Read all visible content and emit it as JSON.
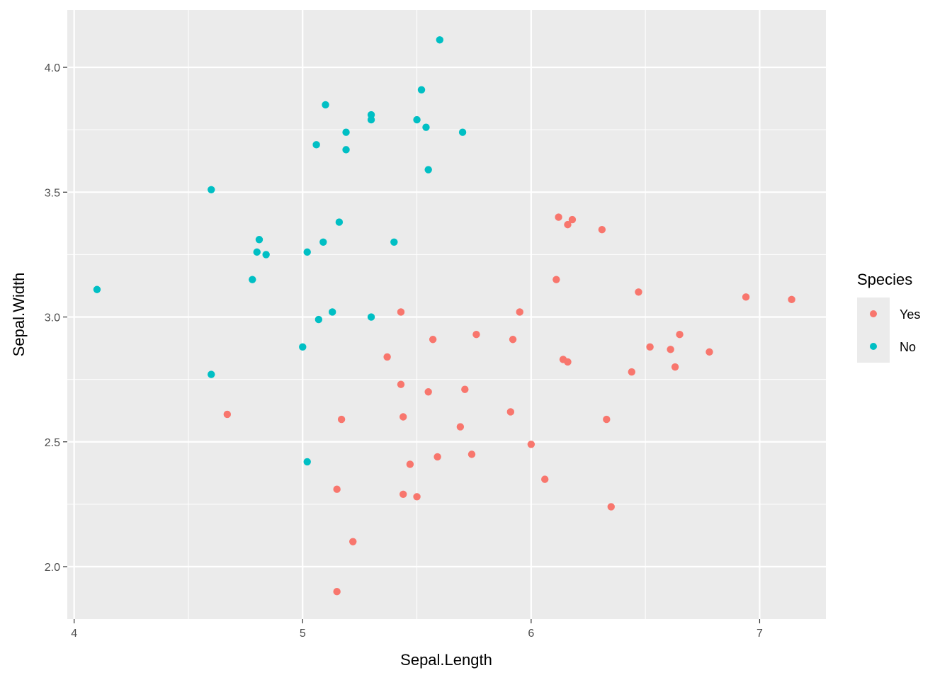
{
  "chart_data": {
    "type": "scatter",
    "xlabel": "Sepal.Length",
    "ylabel": "Sepal.Width",
    "xlim": [
      3.97,
      7.29
    ],
    "ylim": [
      1.79,
      4.23
    ],
    "x_ticks": [
      4,
      5,
      6,
      7
    ],
    "y_ticks": [
      2.0,
      2.5,
      3.0,
      3.5,
      4.0
    ],
    "x_tick_labels": [
      "4",
      "5",
      "6",
      "7"
    ],
    "y_tick_labels": [
      "2.0",
      "2.5",
      "3.0",
      "3.5",
      "4.0"
    ],
    "grid": true,
    "legend": {
      "title": "Species",
      "position": "right",
      "entries": [
        {
          "label": "Yes",
          "color": "#F8766D"
        },
        {
          "label": "No",
          "color": "#00BFC4"
        }
      ]
    },
    "series": [
      {
        "name": "Yes",
        "color": "#F8766D",
        "points": [
          [
            4.67,
            2.61
          ],
          [
            5.15,
            1.9
          ],
          [
            5.15,
            2.31
          ],
          [
            5.17,
            2.59
          ],
          [
            5.22,
            2.1
          ],
          [
            5.37,
            2.84
          ],
          [
            5.43,
            3.02
          ],
          [
            5.43,
            2.73
          ],
          [
            5.44,
            2.6
          ],
          [
            5.44,
            2.29
          ],
          [
            5.47,
            2.41
          ],
          [
            5.5,
            2.28
          ],
          [
            5.55,
            2.7
          ],
          [
            5.57,
            2.91
          ],
          [
            5.59,
            2.44
          ],
          [
            5.69,
            2.56
          ],
          [
            5.71,
            2.71
          ],
          [
            5.74,
            2.45
          ],
          [
            5.76,
            2.93
          ],
          [
            5.91,
            2.62
          ],
          [
            5.92,
            2.91
          ],
          [
            5.95,
            3.02
          ],
          [
            6.0,
            2.49
          ],
          [
            6.06,
            2.35
          ],
          [
            6.11,
            3.15
          ],
          [
            6.12,
            3.4
          ],
          [
            6.14,
            2.83
          ],
          [
            6.16,
            3.37
          ],
          [
            6.16,
            2.82
          ],
          [
            6.18,
            3.39
          ],
          [
            6.31,
            3.35
          ],
          [
            6.33,
            2.59
          ],
          [
            6.35,
            2.24
          ],
          [
            6.44,
            2.78
          ],
          [
            6.47,
            3.1
          ],
          [
            6.52,
            2.88
          ],
          [
            6.61,
            2.87
          ],
          [
            6.63,
            2.8
          ],
          [
            6.65,
            2.93
          ],
          [
            6.78,
            2.86
          ],
          [
            6.94,
            3.08
          ],
          [
            7.14,
            3.07
          ]
        ]
      },
      {
        "name": "No",
        "color": "#00BFC4",
        "points": [
          [
            4.1,
            3.11
          ],
          [
            4.6,
            3.51
          ],
          [
            4.6,
            2.77
          ],
          [
            4.78,
            3.15
          ],
          [
            4.8,
            3.26
          ],
          [
            4.81,
            3.31
          ],
          [
            4.84,
            3.25
          ],
          [
            5.0,
            2.88
          ],
          [
            5.02,
            3.26
          ],
          [
            5.02,
            2.42
          ],
          [
            5.06,
            3.69
          ],
          [
            5.07,
            2.99
          ],
          [
            5.09,
            3.3
          ],
          [
            5.1,
            3.85
          ],
          [
            5.13,
            3.02
          ],
          [
            5.16,
            3.38
          ],
          [
            5.19,
            3.67
          ],
          [
            5.19,
            3.74
          ],
          [
            5.3,
            3.79
          ],
          [
            5.3,
            3.81
          ],
          [
            5.3,
            3.0
          ],
          [
            5.4,
            3.3
          ],
          [
            5.5,
            3.79
          ],
          [
            5.52,
            3.91
          ],
          [
            5.54,
            3.76
          ],
          [
            5.55,
            3.59
          ],
          [
            5.6,
            4.11
          ],
          [
            5.7,
            3.74
          ]
        ]
      }
    ]
  }
}
